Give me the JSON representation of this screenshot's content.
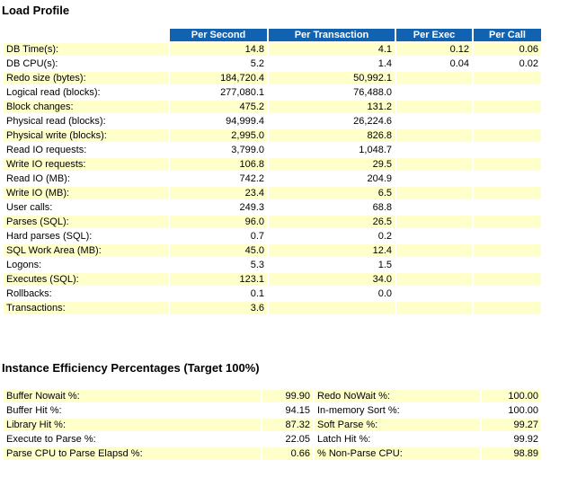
{
  "colors": {
    "header_bg": "#1162b1",
    "header_text": "#ffffff",
    "row_alt_bg": "#ffffcc"
  },
  "load_profile": {
    "title": "Load Profile",
    "columns": [
      "Per Second",
      "Per Transaction",
      "Per Exec",
      "Per Call"
    ],
    "rows": [
      {
        "label": "DB Time(s):",
        "per_second": "14.8",
        "per_transaction": "4.1",
        "per_exec": "0.12",
        "per_call": "0.06"
      },
      {
        "label": "DB CPU(s):",
        "per_second": "5.2",
        "per_transaction": "1.4",
        "per_exec": "0.04",
        "per_call": "0.02"
      },
      {
        "label": "Redo size (bytes):",
        "per_second": "184,720.4",
        "per_transaction": "50,992.1",
        "per_exec": "",
        "per_call": ""
      },
      {
        "label": "Logical read (blocks):",
        "per_second": "277,080.1",
        "per_transaction": "76,488.0",
        "per_exec": "",
        "per_call": ""
      },
      {
        "label": "Block changes:",
        "per_second": "475.2",
        "per_transaction": "131.2",
        "per_exec": "",
        "per_call": ""
      },
      {
        "label": "Physical read (blocks):",
        "per_second": "94,999.4",
        "per_transaction": "26,224.6",
        "per_exec": "",
        "per_call": ""
      },
      {
        "label": "Physical write (blocks):",
        "per_second": "2,995.0",
        "per_transaction": "826.8",
        "per_exec": "",
        "per_call": ""
      },
      {
        "label": "Read IO requests:",
        "per_second": "3,799.0",
        "per_transaction": "1,048.7",
        "per_exec": "",
        "per_call": ""
      },
      {
        "label": "Write IO requests:",
        "per_second": "106.8",
        "per_transaction": "29.5",
        "per_exec": "",
        "per_call": ""
      },
      {
        "label": "Read IO (MB):",
        "per_second": "742.2",
        "per_transaction": "204.9",
        "per_exec": "",
        "per_call": ""
      },
      {
        "label": "Write IO (MB):",
        "per_second": "23.4",
        "per_transaction": "6.5",
        "per_exec": "",
        "per_call": ""
      },
      {
        "label": "User calls:",
        "per_second": "249.3",
        "per_transaction": "68.8",
        "per_exec": "",
        "per_call": ""
      },
      {
        "label": "Parses (SQL):",
        "per_second": "96.0",
        "per_transaction": "26.5",
        "per_exec": "",
        "per_call": ""
      },
      {
        "label": "Hard parses (SQL):",
        "per_second": "0.7",
        "per_transaction": "0.2",
        "per_exec": "",
        "per_call": ""
      },
      {
        "label": "SQL Work Area (MB):",
        "per_second": "45.0",
        "per_transaction": "12.4",
        "per_exec": "",
        "per_call": ""
      },
      {
        "label": "Logons:",
        "per_second": "5.3",
        "per_transaction": "1.5",
        "per_exec": "",
        "per_call": ""
      },
      {
        "label": "Executes (SQL):",
        "per_second": "123.1",
        "per_transaction": "34.0",
        "per_exec": "",
        "per_call": ""
      },
      {
        "label": "Rollbacks:",
        "per_second": "0.1",
        "per_transaction": "0.0",
        "per_exec": "",
        "per_call": ""
      },
      {
        "label": "Transactions:",
        "per_second": "3.6",
        "per_transaction": "",
        "per_exec": "",
        "per_call": ""
      }
    ]
  },
  "instance_efficiency": {
    "title": "Instance Efficiency Percentages (Target 100%)",
    "rows": [
      {
        "label1": "Buffer Nowait %:",
        "value1": "99.90",
        "label2": "Redo NoWait %:",
        "value2": "100.00"
      },
      {
        "label1": "Buffer Hit %:",
        "value1": "94.15",
        "label2": "In-memory Sort %:",
        "value2": "100.00"
      },
      {
        "label1": "Library Hit %:",
        "value1": "87.32",
        "label2": "Soft Parse %:",
        "value2": "99.27"
      },
      {
        "label1": "Execute to Parse %:",
        "value1": "22.05",
        "label2": "Latch Hit %:",
        "value2": "99.92"
      },
      {
        "label1": "Parse CPU to Parse Elapsd %:",
        "value1": "0.66",
        "label2": "% Non-Parse CPU:",
        "value2": "98.89"
      }
    ]
  }
}
